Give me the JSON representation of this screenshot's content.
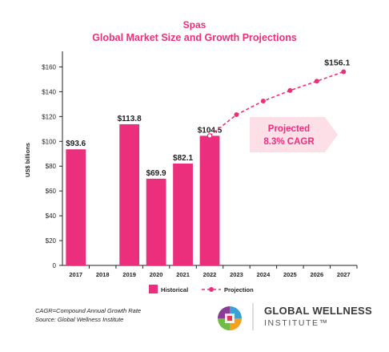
{
  "header": {
    "title": "Spas",
    "subtitle": "Global Market Size and Growth Projections"
  },
  "chart_data": {
    "type": "bar",
    "title": "Spas",
    "subtitle": "Global Market Size and Growth Projections",
    "ylabel": "US$ billions",
    "ylim": [
      0,
      170
    ],
    "yticks": [
      0,
      20,
      40,
      60,
      80,
      100,
      120,
      140,
      160
    ],
    "ytick_labels": [
      "0",
      "$20",
      "$40",
      "$60",
      "$80",
      "$100",
      "$120",
      "$140",
      "$160"
    ],
    "categories": [
      "2017",
      "2018",
      "2019",
      "2020",
      "2021",
      "2022",
      "2023",
      "2024",
      "2025",
      "2026",
      "2027"
    ],
    "series": [
      {
        "name": "Historical",
        "type": "bar",
        "color": "#ec2f7c",
        "points": [
          {
            "x": "2017",
            "y": 93.6,
            "label": "$93.6"
          },
          {
            "x": "2019",
            "y": 113.8,
            "label": "$113.8"
          },
          {
            "x": "2020",
            "y": 69.9,
            "label": "$69.9"
          },
          {
            "x": "2021",
            "y": 82.1,
            "label": "$82.1"
          },
          {
            "x": "2022",
            "y": 104.5,
            "label": "$104.5"
          }
        ]
      },
      {
        "name": "Projection",
        "type": "line",
        "style": "dashed",
        "color": "#ec2f7c",
        "points": [
          {
            "x": "2022",
            "y": 104.5
          },
          {
            "x": "2023",
            "y": 121.5
          },
          {
            "x": "2024",
            "y": 132.5
          },
          {
            "x": "2025",
            "y": 141
          },
          {
            "x": "2026",
            "y": 148.5
          },
          {
            "x": "2027",
            "y": 156.1,
            "label": "$156.1"
          }
        ]
      }
    ],
    "annotation": {
      "line1": "Projected",
      "line2": "8.3% CAGR",
      "color": "#fde0e7",
      "text_color": "#ec2f7c"
    },
    "legend": {
      "placement": "bottom",
      "items": [
        "Historical",
        "Projection"
      ]
    },
    "grid": false
  },
  "footnotes": {
    "line1": "CAGR=Compound Annual Growth Rate",
    "line2": "Source: Global Wellness Institute"
  },
  "logo": {
    "line1": "GLOBAL WELLNESS",
    "line2": "INSTITUTE™"
  }
}
